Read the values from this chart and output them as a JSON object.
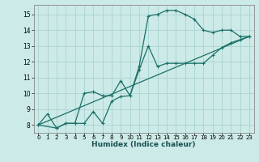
{
  "xlabel": "Humidex (Indice chaleur)",
  "xlim": [
    -0.5,
    23.5
  ],
  "ylim": [
    7.5,
    15.6
  ],
  "bg_color": "#cceae7",
  "grid_color": "#aad4d0",
  "line_color": "#1a7068",
  "line1_x": [
    0,
    1,
    2,
    3,
    4,
    5,
    6,
    7,
    8,
    9,
    10,
    11,
    12,
    13,
    14,
    15,
    16,
    17,
    18,
    19,
    20,
    21,
    22,
    23
  ],
  "line1_y": [
    8.0,
    8.7,
    7.8,
    8.1,
    8.1,
    10.0,
    10.1,
    9.85,
    9.85,
    10.8,
    9.85,
    11.7,
    14.9,
    15.0,
    15.25,
    15.25,
    15.0,
    14.7,
    14.0,
    13.85,
    14.0,
    14.0,
    13.6,
    13.6
  ],
  "line2_x": [
    0,
    2,
    3,
    4,
    5,
    6,
    7,
    8,
    9,
    10,
    11,
    12,
    13,
    14,
    15,
    16,
    17,
    18,
    19,
    20,
    21,
    22,
    23
  ],
  "line2_y": [
    8.0,
    7.8,
    8.1,
    8.1,
    8.1,
    8.85,
    8.1,
    9.5,
    9.8,
    9.85,
    11.5,
    13.0,
    11.7,
    11.9,
    11.9,
    11.9,
    11.9,
    11.9,
    12.4,
    12.9,
    13.2,
    13.4,
    13.6
  ],
  "line3_x": [
    0,
    23
  ],
  "line3_y": [
    8.0,
    13.6
  ],
  "xticks": [
    0,
    1,
    2,
    3,
    4,
    5,
    6,
    7,
    8,
    9,
    10,
    11,
    12,
    13,
    14,
    15,
    16,
    17,
    18,
    19,
    20,
    21,
    22,
    23
  ],
  "yticks": [
    8,
    9,
    10,
    11,
    12,
    13,
    14,
    15
  ]
}
